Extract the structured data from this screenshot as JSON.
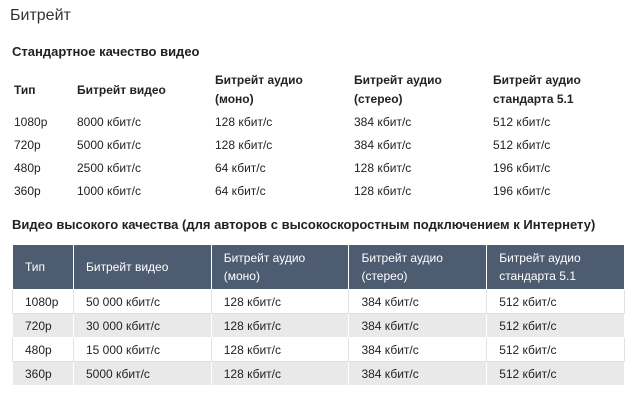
{
  "page_title": "Битрейт",
  "standard": {
    "title": "Стандартное качество видео",
    "headers": {
      "type": "Тип",
      "video": "Битрейт видео",
      "audio_mono_1": "Битрейт аудио",
      "audio_mono_2": "(моно)",
      "audio_stereo_1": "Битрейт аудио",
      "audio_stereo_2": "(стерео)",
      "audio_51_1": "Битрейт аудио",
      "audio_51_2": "стандарта 5.1"
    },
    "rows": [
      {
        "type": "1080p",
        "video": "8000 кбит/с",
        "mono": "128 кбит/с",
        "stereo": "384 кбит/с",
        "s51": "512 кбит/с"
      },
      {
        "type": "720p",
        "video": "5000 кбит/с",
        "mono": "128 кбит/с",
        "stereo": "384 кбит/с",
        "s51": "512 кбит/с"
      },
      {
        "type": "480p",
        "video": "2500 кбит/с",
        "mono": "64 кбит/с",
        "stereo": "128 кбит/с",
        "s51": "196 кбит/с"
      },
      {
        "type": "360p",
        "video": "1000 кбит/с",
        "mono": "64 кбит/с",
        "stereo": "128 кбит/с",
        "s51": "196 кбит/с"
      }
    ]
  },
  "high": {
    "title": "Видео высокого качества (для авторов с высокоскоростным подключением к Интернету)",
    "header_bg": "#4e5c72",
    "headers": {
      "type": "Тип",
      "video": "Битрейт видео",
      "audio_mono_1": "Битрейт аудио",
      "audio_mono_2": "(моно)",
      "audio_stereo_1": "Битрейт аудио",
      "audio_stereo_2": "(стерео)",
      "audio_51_1": "Битрейт аудио",
      "audio_51_2": "стандарта 5.1"
    },
    "rows": [
      {
        "type": "1080p",
        "video": "50 000 кбит/с",
        "mono": "128 кбит/с",
        "stereo": "384 кбит/с",
        "s51": "512 кбит/с"
      },
      {
        "type": "720p",
        "video": "30 000 кбит/с",
        "mono": "128 кбит/с",
        "stereo": "384 кбит/с",
        "s51": "512 кбит/с"
      },
      {
        "type": "480p",
        "video": "15 000 кбит/с",
        "mono": "128 кбит/с",
        "stereo": "384 кбит/с",
        "s51": "512 кбит/с"
      },
      {
        "type": "360p",
        "video": "5000 кбит/с",
        "mono": "128 кбит/с",
        "stereo": "384 кбит/с",
        "s51": "512 кбит/с"
      }
    ]
  }
}
